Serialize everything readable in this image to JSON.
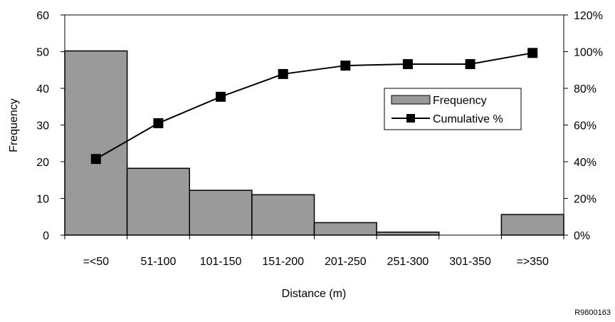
{
  "chart_data": {
    "type": "bar",
    "categories": [
      "=<50",
      "51-100",
      "101-150",
      "151-200",
      "201-250",
      "251-300",
      "301-350",
      "=>350"
    ],
    "series": [
      {
        "name": "Frequency",
        "type": "bar",
        "axis": "left",
        "values": [
          50.2,
          18.2,
          12.2,
          11.0,
          3.4,
          0.8,
          0,
          5.6
        ]
      },
      {
        "name": "Cumulative %",
        "type": "line",
        "axis": "right",
        "values": [
          41.5,
          61.0,
          75.4,
          87.8,
          92.4,
          93.2,
          93.2,
          99.3
        ]
      }
    ],
    "xlabel": "Distance (m)",
    "ylabel": "Frequency",
    "ylim": [
      0,
      60
    ],
    "yticks": [
      0,
      10,
      20,
      30,
      40,
      50,
      60
    ],
    "y2lim": [
      0,
      120
    ],
    "y2ticks": [
      "0%",
      "20%",
      "40%",
      "60%",
      "80%",
      "100%",
      "120%"
    ],
    "grid": false,
    "legend_position": "right-center",
    "colors": {
      "bar_fill": "#9a9a9a",
      "bar_stroke": "#000000",
      "line": "#000000",
      "marker": "#000000"
    }
  },
  "figure_id": "R9800163"
}
